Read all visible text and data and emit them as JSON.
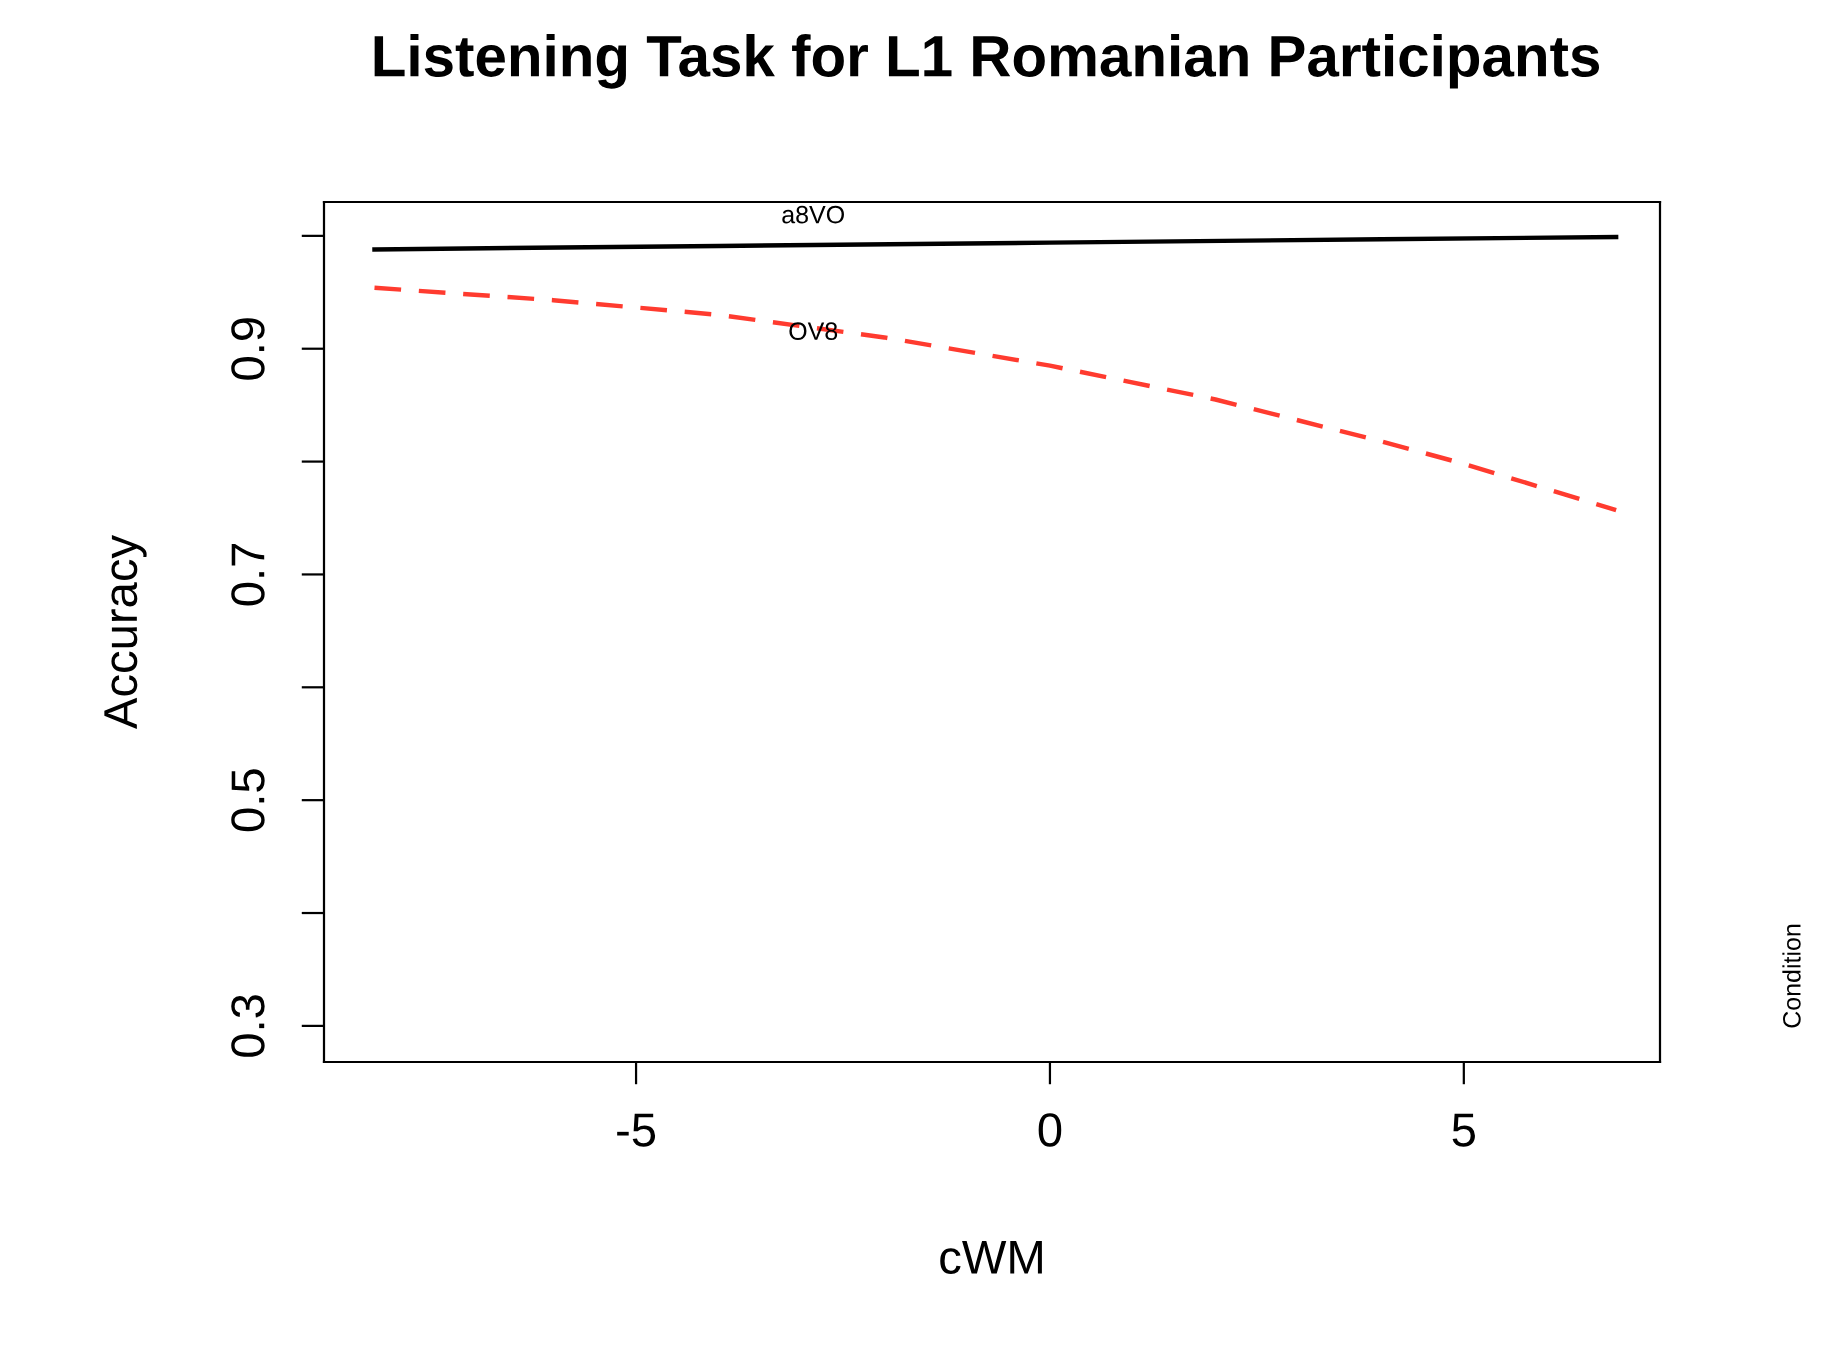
{
  "chart_data": {
    "type": "line",
    "title": "Listening Task for L1 Romanian Participants",
    "xlabel": "cWM",
    "ylabel": "Accuracy",
    "legend_title": "Condition",
    "series": [
      {
        "name": "a8VO",
        "color": "#000000",
        "line_style": "solid",
        "x": [
          -8.16,
          -4,
          0,
          4,
          6.84
        ],
        "values": [
          0.988,
          0.991,
          0.994,
          0.997,
          0.999
        ]
      },
      {
        "name": "OV8",
        "color": "#ff3b2f",
        "line_style": "dashed",
        "x": [
          -8.16,
          -6,
          -4,
          -2,
          0,
          2,
          4,
          5,
          6.84
        ],
        "values": [
          0.954,
          0.943,
          0.93,
          0.91,
          0.885,
          0.855,
          0.818,
          0.798,
          0.757
        ]
      }
    ],
    "xlim": [
      -8.77,
      7.37
    ],
    "xticks": [
      -5,
      0,
      5
    ],
    "ylim": [
      0.268,
      1.03
    ],
    "yticks": [
      0.3,
      {
        "value": 0.4,
        "label": null
      },
      0.5,
      {
        "value": 0.6,
        "label": null
      },
      0.7,
      {
        "value": 0.8,
        "label": null
      },
      0.9,
      {
        "value": 1.0,
        "label": null
      }
    ],
    "grid": false,
    "legend": false
  }
}
